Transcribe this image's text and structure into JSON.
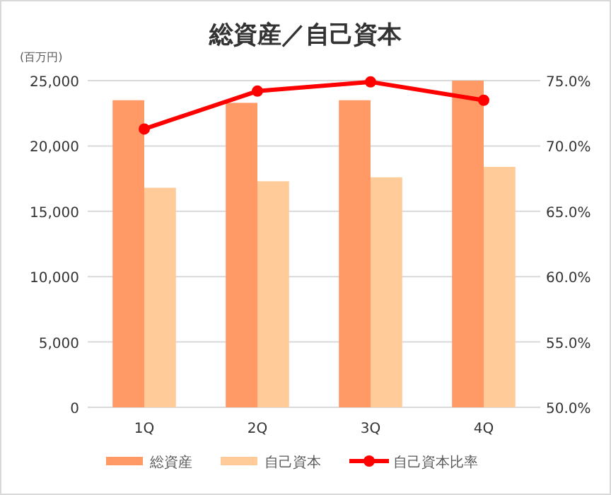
{
  "chart_data": {
    "type": "bar",
    "title": "総資産／自己資本",
    "ylabel": "(百万円)",
    "categories": [
      "1Q",
      "2Q",
      "3Q",
      "4Q"
    ],
    "series": [
      {
        "name": "総資産",
        "color": "#ff9966",
        "values": [
          23500,
          23300,
          23500,
          25000
        ]
      },
      {
        "name": "自己資本",
        "color": "#ffcc99",
        "values": [
          16800,
          17300,
          17600,
          18400
        ]
      },
      {
        "name": "自己資本比率",
        "type": "line",
        "axis": "y2",
        "color": "#ff0000",
        "values": [
          71.3,
          74.2,
          74.9,
          73.5
        ]
      }
    ],
    "ylim": [
      0,
      25000
    ],
    "yticks": [
      {
        "value": 0,
        "label": "0"
      },
      {
        "value": 5000,
        "label": "5,000"
      },
      {
        "value": 10000,
        "label": "10,000"
      },
      {
        "value": 15000,
        "label": "15,000"
      },
      {
        "value": 20000,
        "label": "20,000"
      },
      {
        "value": 25000,
        "label": "25,000"
      }
    ],
    "y2lim": [
      50,
      75
    ],
    "y2ticks": [
      {
        "value": 50,
        "label": "50.0%"
      },
      {
        "value": 55,
        "label": "55.0%"
      },
      {
        "value": 60,
        "label": "60.0%"
      },
      {
        "value": 65,
        "label": "65.0%"
      },
      {
        "value": 70,
        "label": "70.0%"
      },
      {
        "value": 75,
        "label": "75.0%"
      }
    ],
    "grid": "y",
    "legend": "bottom",
    "marker": "circle"
  }
}
